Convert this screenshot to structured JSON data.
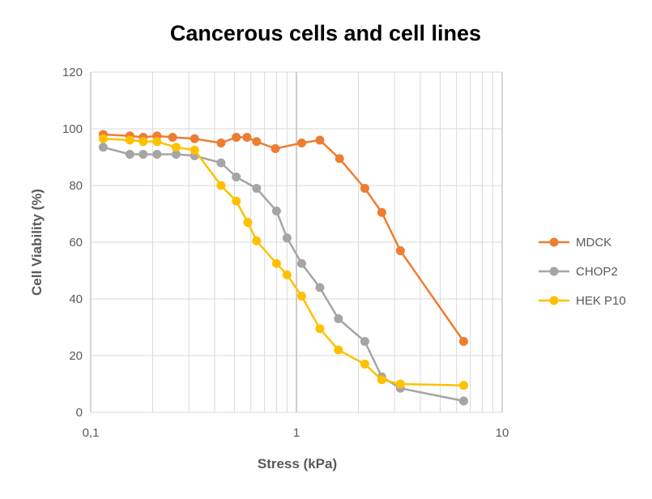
{
  "chart_data": {
    "type": "line",
    "title": "Cancerous cells and cell lines",
    "xlabel": "Stress (kPa)",
    "ylabel": "Cell Viability (%)",
    "x_scale": "log",
    "xlim": [
      0.1,
      10
    ],
    "ylim": [
      0,
      120
    ],
    "x_ticks": [
      0.1,
      1,
      10
    ],
    "x_tick_labels": [
      "0,1",
      "1",
      "10"
    ],
    "y_ticks": [
      0,
      20,
      40,
      60,
      80,
      100,
      120
    ],
    "y_tick_labels": [
      "0",
      "20",
      "40",
      "60",
      "80",
      "100",
      "120"
    ],
    "gridlines": true,
    "legend_position": "right",
    "series": [
      {
        "name": "MDCK",
        "color": "#ED7D31",
        "x": [
          0.115,
          0.155,
          0.18,
          0.21,
          0.25,
          0.32,
          0.43,
          0.51,
          0.575,
          0.64,
          0.79,
          1.06,
          1.3,
          1.62,
          2.15,
          2.6,
          3.2,
          6.5
        ],
        "y": [
          98,
          97.5,
          97,
          97.5,
          97,
          96.5,
          95,
          97,
          97,
          95.5,
          93,
          95,
          96,
          89.5,
          79,
          70.5,
          57,
          25
        ]
      },
      {
        "name": "CHOP2",
        "color": "#A5A5A5",
        "x": [
          0.115,
          0.155,
          0.18,
          0.21,
          0.26,
          0.32,
          0.43,
          0.51,
          0.64,
          0.8,
          0.9,
          1.06,
          1.3,
          1.6,
          2.15,
          2.6,
          3.2,
          6.5
        ],
        "y": [
          93.5,
          91,
          91,
          91,
          91,
          90.5,
          88,
          83,
          79,
          71,
          61.5,
          52.5,
          44,
          33,
          25,
          12.5,
          8.5,
          4
        ]
      },
      {
        "name": "HEK P10",
        "color": "#FFC000",
        "x": [
          0.115,
          0.155,
          0.18,
          0.21,
          0.26,
          0.32,
          0.43,
          0.51,
          0.58,
          0.64,
          0.8,
          0.9,
          1.06,
          1.3,
          1.6,
          2.15,
          2.6,
          3.2,
          6.5
        ],
        "y": [
          96.5,
          96,
          95.5,
          95.5,
          93.5,
          92.5,
          80,
          74.5,
          67,
          60.5,
          52.5,
          48.5,
          41,
          29.5,
          22,
          17,
          11.5,
          10,
          9.5
        ]
      }
    ]
  }
}
